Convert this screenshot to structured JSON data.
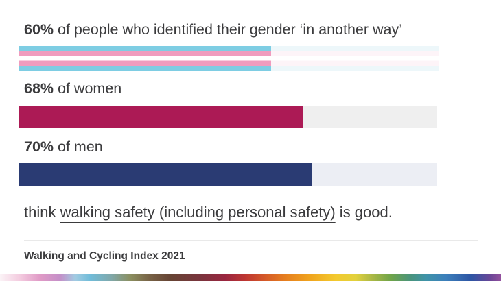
{
  "chart_data": {
    "type": "bar",
    "orientation": "horizontal",
    "unit": "%",
    "categories": [
      "people who identified their gender ‘in another way’",
      "women",
      "men"
    ],
    "values": [
      60,
      68,
      70
    ],
    "xlim": [
      0,
      100
    ],
    "grid": false,
    "legend": false,
    "title": "think walking safety (including personal safety) is good.",
    "xlabel": "",
    "ylabel": "",
    "annotations": [
      "60% of people who identified their gender ‘in another way’",
      "68% of women",
      "70% of men"
    ],
    "source": "Walking and Cycling Index 2021"
  },
  "rows": [
    {
      "percent": "60%",
      "rest": "of people who identified their gender ‘in another way’",
      "value": 60,
      "bar": {
        "type": "striped-trans-flag",
        "stripes": [
          "#7ECDE3",
          "#F09CBE",
          "#FFFFFF",
          "#F09CBE",
          "#7ECDE3"
        ],
        "track_stripes": [
          "#EDF7FA",
          "#FDF4F8",
          "#FFFFFF",
          "#FDF4F8",
          "#EDF7FA"
        ]
      }
    },
    {
      "percent": "68%",
      "rest": "of women",
      "value": 68,
      "bar": {
        "type": "solid",
        "fill": "#AC1A55",
        "track": "#EFEFEF"
      }
    },
    {
      "percent": "70%",
      "rest": "of men",
      "value": 70,
      "bar": {
        "type": "solid",
        "fill": "#2A3B73",
        "track": "#ECEEF4"
      }
    }
  ],
  "statement": {
    "prefix": "think ",
    "underlined": "walking safety (including personal safety)",
    "suffix": " is good."
  },
  "footer": {
    "source_label": "Walking and Cycling Index 2021"
  },
  "text_color": "#3B3B3D",
  "pride_strip": [
    "#FBF3F6 0%",
    "#F3CBDF 4%",
    "#E09AC6 8%",
    "#C48FC8 12%",
    "#A2CBE2 15%",
    "#70BCD9 18%",
    "#7FA9AD 22%",
    "#8B8F60 26%",
    "#776145 30%",
    "#664434 34%",
    "#7A343D 40%",
    "#9A2640 45%",
    "#BE3632 49%",
    "#D55A28 53%",
    "#E67F1F 57%",
    "#F0A51E 62%",
    "#F3C92E 67%",
    "#E2D13C 71%",
    "#AFBA45 74%",
    "#6FA449 78%",
    "#49947D 82%",
    "#3F93A8 85%",
    "#3C7FBB 89%",
    "#2D55A4 94%",
    "#6D4697 98%",
    "#93519E 100%"
  ]
}
